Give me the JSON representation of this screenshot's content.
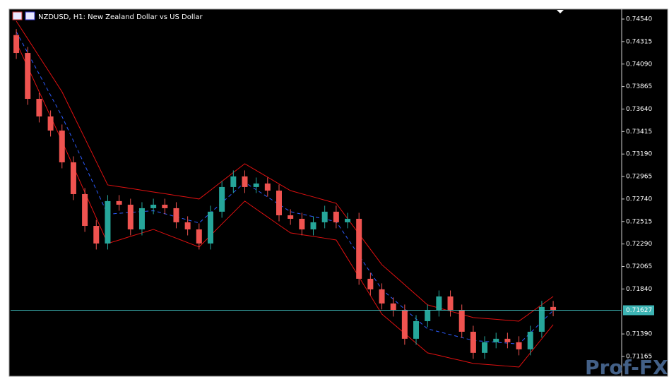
{
  "chart_data": {
    "type": "candlestick",
    "title": "NZDUSD, H1:  New Zealand Dollar vs US Dollar",
    "up_color": "#26a69a",
    "down_color": "#ef5350",
    "band_color": "#e01010",
    "middle_color": "#2c5cff",
    "open": [
      0.7438,
      0.74201,
      0.73742,
      0.73566,
      0.73425,
      0.73107,
      0.72789,
      0.72471,
      0.72295,
      0.72719,
      0.72683,
      0.72436,
      0.72648,
      0.72683,
      0.72648,
      0.72507,
      0.72436,
      0.72295,
      0.72613,
      0.7286,
      0.72966,
      0.7286,
      0.72895,
      0.72824,
      0.72577,
      0.72542,
      0.72436,
      0.72507,
      0.72613,
      0.72507,
      0.72542,
      0.71942,
      0.71836,
      0.71695,
      0.71624,
      0.71342,
      0.71518,
      0.71624,
      0.71765,
      0.71624,
      0.71412,
      0.71201,
      0.71307,
      0.71342,
      0.71307,
      0.71236,
      0.71412,
      0.7166
    ],
    "high": [
      0.7444,
      0.74261,
      0.73802,
      0.73626,
      0.73485,
      0.73167,
      0.72849,
      0.72531,
      0.72779,
      0.72779,
      0.72743,
      0.72708,
      0.72743,
      0.72743,
      0.72708,
      0.72567,
      0.72496,
      0.72673,
      0.7292,
      0.73026,
      0.73026,
      0.72955,
      0.72955,
      0.72884,
      0.72637,
      0.72602,
      0.72567,
      0.72673,
      0.72673,
      0.72602,
      0.72602,
      0.72002,
      0.71896,
      0.71755,
      0.71684,
      0.71578,
      0.71684,
      0.71825,
      0.71825,
      0.71684,
      0.71472,
      0.71367,
      0.71402,
      0.71402,
      0.71367,
      0.71472,
      0.7172,
      0.7172
    ],
    "low": [
      0.74141,
      0.73682,
      0.73506,
      0.73365,
      0.73047,
      0.72729,
      0.72411,
      0.72235,
      0.72235,
      0.72623,
      0.72376,
      0.72376,
      0.72588,
      0.72588,
      0.72447,
      0.72376,
      0.72235,
      0.72235,
      0.72553,
      0.728,
      0.728,
      0.728,
      0.72764,
      0.72517,
      0.72482,
      0.72376,
      0.72376,
      0.72447,
      0.72447,
      0.72447,
      0.71882,
      0.71776,
      0.71635,
      0.71564,
      0.71282,
      0.71282,
      0.71458,
      0.71564,
      0.71564,
      0.71352,
      0.71141,
      0.71141,
      0.71247,
      0.71247,
      0.71176,
      0.71176,
      0.71352,
      0.71567
    ],
    "close": [
      0.74201,
      0.73742,
      0.73566,
      0.73425,
      0.73107,
      0.72789,
      0.72471,
      0.72295,
      0.72719,
      0.72683,
      0.72436,
      0.72648,
      0.72683,
      0.72648,
      0.72507,
      0.72436,
      0.72295,
      0.72613,
      0.7286,
      0.72966,
      0.7286,
      0.72895,
      0.72824,
      0.72577,
      0.72542,
      0.72436,
      0.72507,
      0.72613,
      0.72507,
      0.72542,
      0.71942,
      0.71836,
      0.71695,
      0.71624,
      0.71342,
      0.71518,
      0.71624,
      0.71765,
      0.71624,
      0.71412,
      0.71201,
      0.71307,
      0.71342,
      0.71307,
      0.71236,
      0.71412,
      0.7166,
      0.71627
    ],
    "bands": {
      "upper": [
        0.74519,
        0.74343,
        0.74166,
        0.7399,
        0.73813,
        0.7358,
        0.73347,
        0.73114,
        0.72881,
        0.72863,
        0.72846,
        0.72828,
        0.7281,
        0.72793,
        0.72775,
        0.72758,
        0.7274,
        0.72828,
        0.72917,
        0.73005,
        0.73093,
        0.73026,
        0.72959,
        0.72891,
        0.72824,
        0.72792,
        0.72761,
        0.72729,
        0.72697,
        0.72544,
        0.7239,
        0.72237,
        0.72083,
        0.71983,
        0.71882,
        0.71782,
        0.71681,
        0.71649,
        0.71618,
        0.71586,
        0.71554,
        0.71545,
        0.71536,
        0.71527,
        0.71518,
        0.716,
        0.71683,
        0.71765
      ],
      "middle": [
        0.74413,
        0.74202,
        0.7399,
        0.73778,
        0.73566,
        0.73322,
        0.73077,
        0.72833,
        0.72588,
        0.72597,
        0.72606,
        0.72615,
        0.72623,
        0.72593,
        0.72562,
        0.72531,
        0.725,
        0.72602,
        0.72704,
        0.72805,
        0.72906,
        0.72833,
        0.7276,
        0.72686,
        0.72613,
        0.72588,
        0.72564,
        0.72539,
        0.72514,
        0.72345,
        0.72175,
        0.72006,
        0.71836,
        0.71738,
        0.71639,
        0.7154,
        0.71441,
        0.71412,
        0.71383,
        0.71354,
        0.71325,
        0.71316,
        0.71307,
        0.71298,
        0.71289,
        0.714,
        0.71513,
        0.71624
      ],
      "lower": [
        0.74307,
        0.7406,
        0.73813,
        0.73566,
        0.73319,
        0.73063,
        0.72807,
        0.72551,
        0.72295,
        0.7233,
        0.72366,
        0.72401,
        0.72436,
        0.72392,
        0.72348,
        0.72304,
        0.7226,
        0.72375,
        0.7249,
        0.72604,
        0.72719,
        0.72639,
        0.7256,
        0.7248,
        0.72401,
        0.72383,
        0.72366,
        0.72348,
        0.7233,
        0.72145,
        0.7196,
        0.71774,
        0.71589,
        0.71492,
        0.71395,
        0.71298,
        0.71201,
        0.71175,
        0.71148,
        0.71122,
        0.71095,
        0.71086,
        0.71077,
        0.71068,
        0.71059,
        0.712,
        0.71342,
        0.71483
      ]
    },
    "current_price": 0.71627,
    "current_color": "#3cb4b4",
    "ylim": [
      0.70974,
      0.74632
    ],
    "yticks": [
      {
        "value": 0.7454,
        "label": "0.74540"
      },
      {
        "value": 0.74315,
        "label": "0.74315"
      },
      {
        "value": 0.7409,
        "label": "0.74090"
      },
      {
        "value": 0.73865,
        "label": "0.73865"
      },
      {
        "value": 0.7364,
        "label": "0.73640"
      },
      {
        "value": 0.73415,
        "label": "0.73415"
      },
      {
        "value": 0.7319,
        "label": "0.73190"
      },
      {
        "value": 0.72965,
        "label": "0.72965"
      },
      {
        "value": 0.7274,
        "label": "0.72740"
      },
      {
        "value": 0.72515,
        "label": "0.72515"
      },
      {
        "value": 0.7229,
        "label": "0.72290"
      },
      {
        "value": 0.72065,
        "label": "0.72065"
      },
      {
        "value": 0.7184,
        "label": "0.71840"
      },
      {
        "value": 0.7139,
        "label": "0.71390"
      },
      {
        "value": 0.71165,
        "label": "0.71165"
      }
    ],
    "watermark": "Prof-FX"
  }
}
